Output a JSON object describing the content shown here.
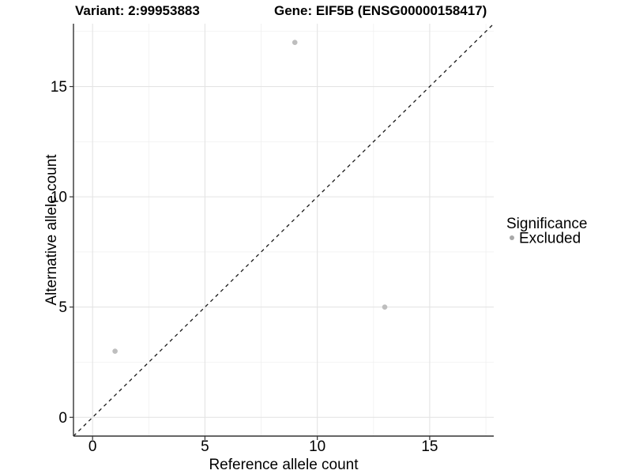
{
  "header": {
    "variant_title": "Variant: 2:99953883",
    "gene_title": "Gene: EIF5B (ENSG00000158417)"
  },
  "chart_data": {
    "type": "scatter",
    "title": "Variant: 2:99953883 — Gene: EIF5B (ENSG00000158417)",
    "xlabel": "Reference allele count",
    "ylabel": "Alternative allele count",
    "xlim": [
      -0.85,
      17.85
    ],
    "ylim": [
      -0.85,
      17.85
    ],
    "x_ticks": [
      0,
      5,
      10,
      15
    ],
    "y_ticks": [
      0,
      5,
      10,
      15
    ],
    "x_minor_ticks": [
      2.5,
      7.5,
      12.5,
      17.5
    ],
    "y_minor_ticks": [
      2.5,
      7.5,
      12.5,
      17.5
    ],
    "grid": true,
    "legend_position": "right",
    "identity_line": {
      "style": "dashed",
      "from": -0.85,
      "to": 17.85
    },
    "series": [
      {
        "name": "Excluded",
        "color": "#bebebe",
        "points": [
          {
            "x": 9,
            "y": 17
          },
          {
            "x": 13,
            "y": 5
          },
          {
            "x": 1,
            "y": 3
          }
        ]
      }
    ]
  },
  "legend": {
    "title": "Significance",
    "items": [
      {
        "label": "Excluded",
        "color": "#a8a8a8"
      }
    ]
  },
  "colors": {
    "background": "#ffffff",
    "grid_major": "#e4e4e4",
    "grid_minor": "#f0f0f0",
    "axis_line": "#333333",
    "identity_line": "#1a1a1a",
    "point": "#bebebe",
    "text": "#000000"
  }
}
